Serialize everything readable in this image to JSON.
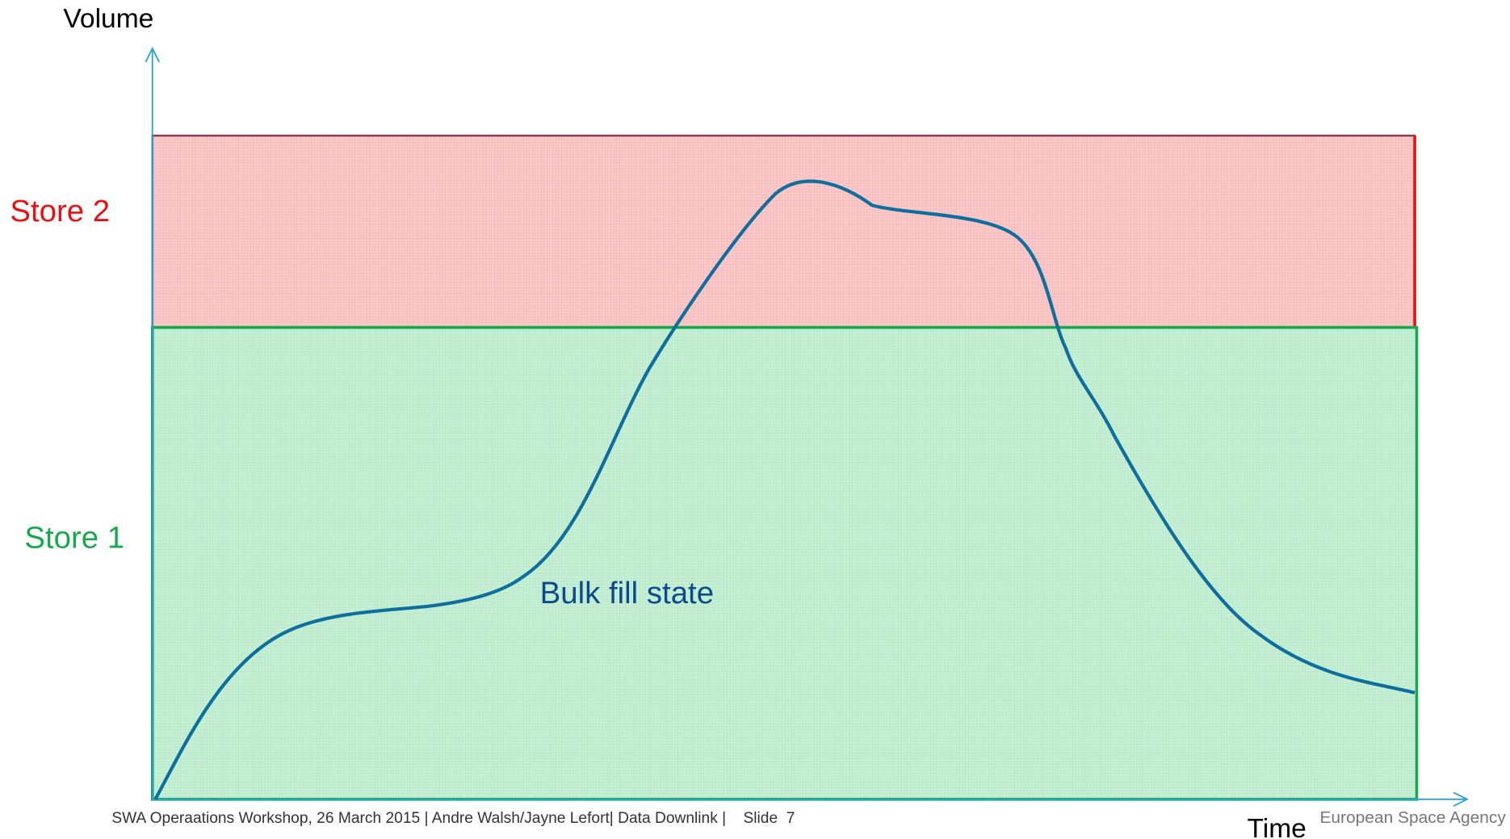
{
  "axes": {
    "y_label": "Volume",
    "x_label": "Time"
  },
  "regions": [
    {
      "label": "Store 2"
    },
    {
      "label": "Store 1"
    }
  ],
  "curve": {
    "label": "Bulk fill state"
  },
  "footer": {
    "text": "SWA Operaations Workshop, 26 March 2015 | Andre Walsh/Jayne Lefort| Data Downlink |    Slide  7",
    "agency": "European Space Agency"
  }
}
